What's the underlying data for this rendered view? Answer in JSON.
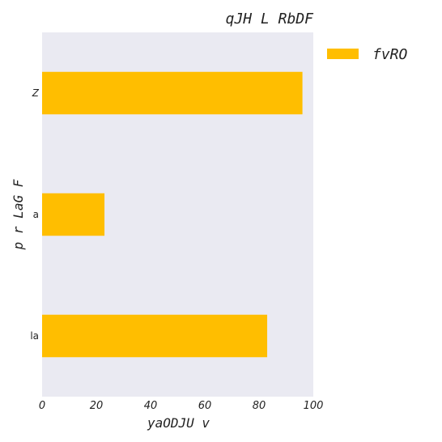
{
  "chart_data": {
    "type": "bar",
    "orientation": "horizontal",
    "title": "qJH L RbDF",
    "xlabel": "yaODJU v",
    "ylabel": "p r LaG F",
    "categories": [
      "Z",
      "a",
      "la"
    ],
    "category_styles": [
      "italic",
      "normal",
      "normal"
    ],
    "series": [
      {
        "name": "fvRO",
        "values": [
          96,
          23,
          83
        ],
        "color": "#FFBE00"
      }
    ],
    "xlim": [
      0,
      100
    ],
    "xticks": [
      "0",
      "20",
      "40",
      "60",
      "80",
      "100"
    ],
    "grid": false,
    "legend_position": "outside-right-top",
    "background_color": "#EAEAF2"
  }
}
